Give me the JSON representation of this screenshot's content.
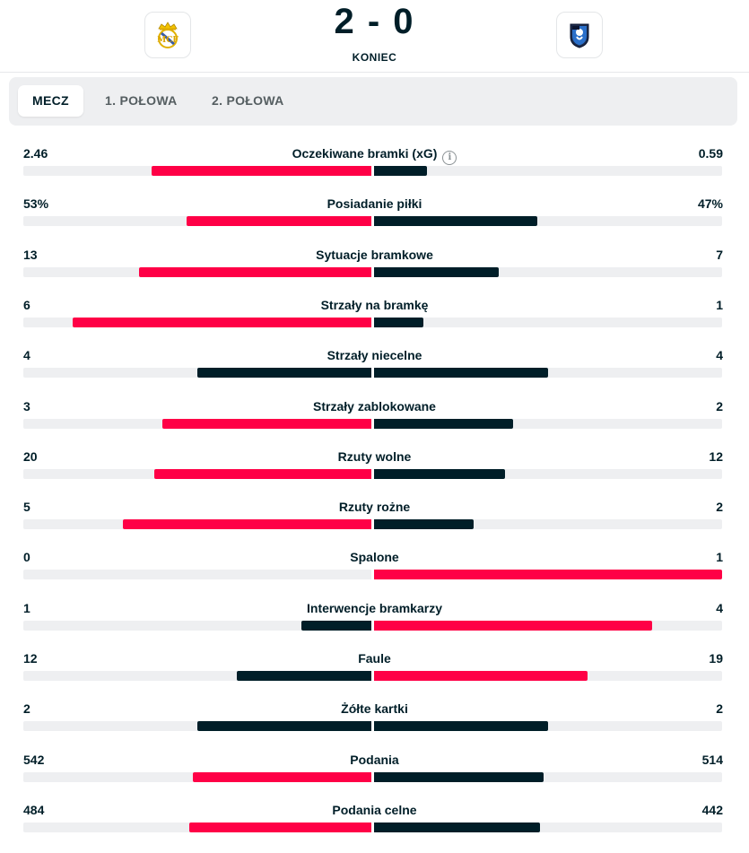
{
  "match": {
    "home_logo_icon": "real-madrid-crest-icon",
    "away_logo_icon": "atalanta-crest-icon",
    "score": "2 - 0",
    "status": "KONIEC"
  },
  "tabs": [
    {
      "label": "MECZ",
      "active": true
    },
    {
      "label": "1. POŁOWA",
      "active": false
    },
    {
      "label": "2. POŁOWA",
      "active": false
    }
  ],
  "colors": {
    "highlight": "#ff0046",
    "neutral": "#001e28",
    "track": "#eeeff1"
  },
  "stats": [
    {
      "label": "Oczekiwane bramki (xG)",
      "home": "2.46",
      "away": "0.59",
      "home_val": 2.46,
      "away_val": 0.59,
      "scale": 3.9,
      "info": true
    },
    {
      "label": "Posiadanie piłki",
      "home": "53%",
      "away": "47%",
      "home_val": 53,
      "away_val": 47,
      "scale": 100
    },
    {
      "label": "Sytuacje bramkowe",
      "home": "13",
      "away": "7",
      "home_val": 13,
      "away_val": 7,
      "scale": 19.5
    },
    {
      "label": "Strzały na bramkę",
      "home": "6",
      "away": "1",
      "home_val": 6,
      "away_val": 1,
      "scale": 7
    },
    {
      "label": "Strzały niecelne",
      "home": "4",
      "away": "4",
      "home_val": 4,
      "away_val": 4,
      "scale": 8
    },
    {
      "label": "Strzały zablokowane",
      "home": "3",
      "away": "2",
      "home_val": 3,
      "away_val": 2,
      "scale": 5
    },
    {
      "label": "Rzuty wolne",
      "home": "20",
      "away": "12",
      "home_val": 20,
      "away_val": 12,
      "scale": 32
    },
    {
      "label": "Rzuty rożne",
      "home": "5",
      "away": "2",
      "home_val": 5,
      "away_val": 2,
      "scale": 7
    },
    {
      "label": "Spalone",
      "home": "0",
      "away": "1",
      "home_val": 0,
      "away_val": 1,
      "scale": 1
    },
    {
      "label": "Interwencje bramkarzy",
      "home": "1",
      "away": "4",
      "home_val": 1,
      "away_val": 4,
      "scale": 5
    },
    {
      "label": "Faule",
      "home": "12",
      "away": "19",
      "home_val": 12,
      "away_val": 19,
      "scale": 31
    },
    {
      "label": "Żółte kartki",
      "home": "2",
      "away": "2",
      "home_val": 2,
      "away_val": 2,
      "scale": 4
    },
    {
      "label": "Podania",
      "home": "542",
      "away": "514",
      "home_val": 542,
      "away_val": 514,
      "scale": 1056
    },
    {
      "label": "Podania celne",
      "home": "484",
      "away": "442",
      "home_val": 484,
      "away_val": 442,
      "scale": 926
    }
  ]
}
